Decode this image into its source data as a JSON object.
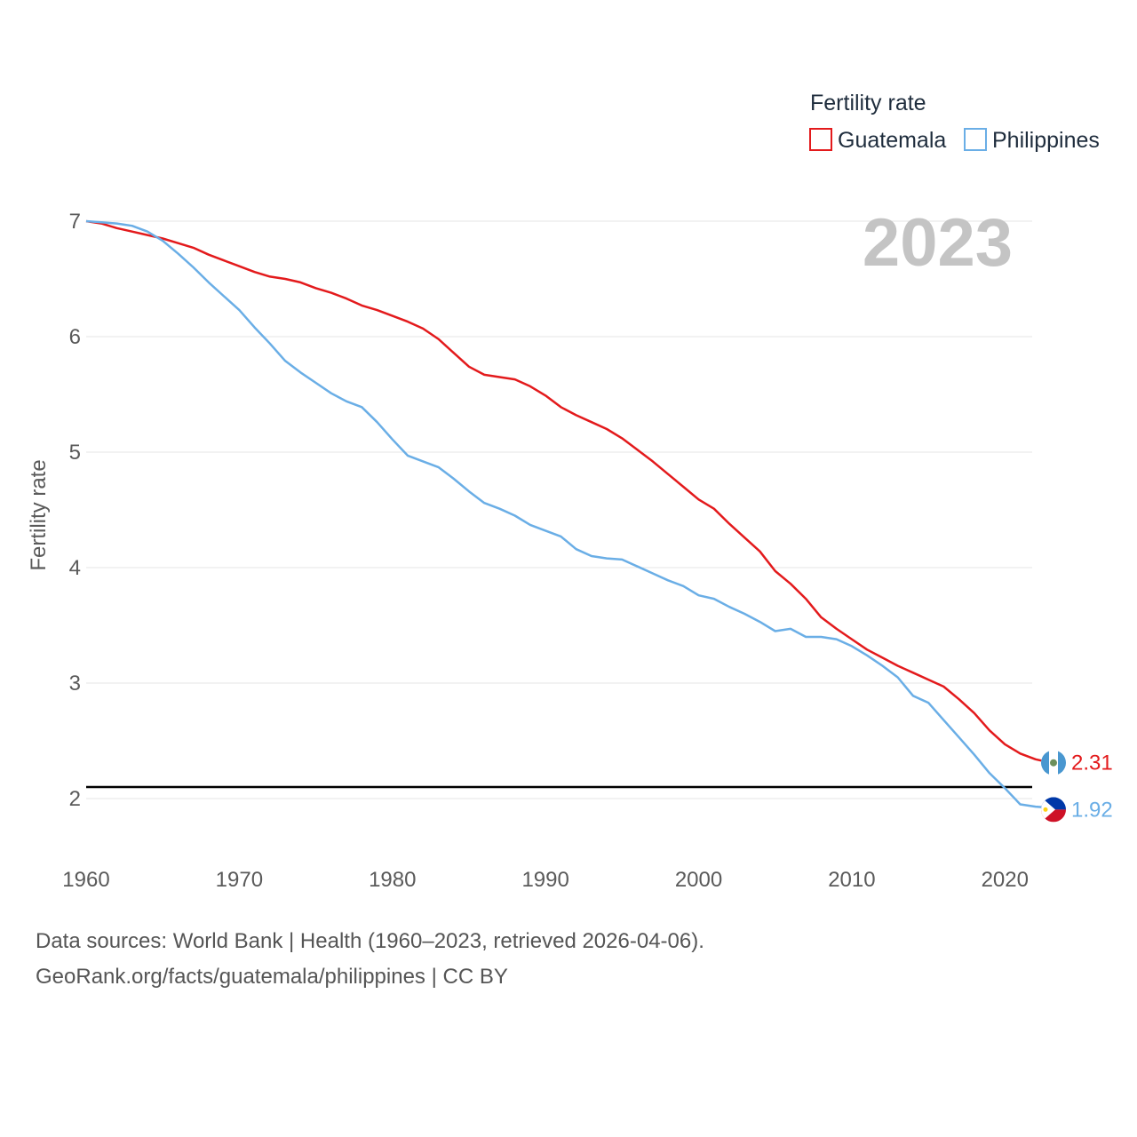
{
  "chart_data": {
    "type": "line",
    "title": "",
    "ylabel": "Fertility rate",
    "xlabel": "",
    "legend_title": "Fertility rate",
    "legend_position": "top-right",
    "current_year_label": "2023",
    "xlim": [
      1960,
      2023
    ],
    "ylim": [
      1.5,
      7.0
    ],
    "x_ticks": [
      1960,
      1970,
      1980,
      1990,
      2000,
      2010,
      2020
    ],
    "y_ticks": [
      2,
      3,
      4,
      5,
      6,
      7
    ],
    "reference_line": 2.1,
    "x": [
      1960,
      1961,
      1962,
      1963,
      1964,
      1965,
      1966,
      1967,
      1968,
      1969,
      1970,
      1971,
      1972,
      1973,
      1974,
      1975,
      1976,
      1977,
      1978,
      1979,
      1980,
      1981,
      1982,
      1983,
      1984,
      1985,
      1986,
      1987,
      1988,
      1989,
      1990,
      1991,
      1992,
      1993,
      1994,
      1995,
      1996,
      1997,
      1998,
      1999,
      2000,
      2001,
      2002,
      2003,
      2004,
      2005,
      2006,
      2007,
      2008,
      2009,
      2010,
      2011,
      2012,
      2013,
      2014,
      2015,
      2016,
      2017,
      2018,
      2019,
      2020,
      2021,
      2022,
      2023
    ],
    "series": [
      {
        "name": "Guatemala",
        "color": "#e31a1c",
        "end_label": "2.31",
        "flag_icon": "guatemala-flag-icon",
        "values": [
          7.0,
          6.98,
          6.94,
          6.91,
          6.88,
          6.85,
          6.81,
          6.77,
          6.71,
          6.66,
          6.61,
          6.56,
          6.52,
          6.5,
          6.47,
          6.42,
          6.38,
          6.33,
          6.27,
          6.23,
          6.18,
          6.13,
          6.07,
          5.98,
          5.86,
          5.74,
          5.67,
          5.65,
          5.63,
          5.57,
          5.49,
          5.39,
          5.32,
          5.26,
          5.2,
          5.12,
          5.02,
          4.92,
          4.81,
          4.7,
          4.59,
          4.51,
          4.38,
          4.26,
          4.14,
          3.97,
          3.86,
          3.73,
          3.57,
          3.47,
          3.38,
          3.29,
          3.22,
          3.15,
          3.09,
          3.03,
          2.97,
          2.86,
          2.74,
          2.59,
          2.47,
          2.39,
          2.34,
          2.31
        ]
      },
      {
        "name": "Philippines",
        "color": "#6aaee6",
        "end_label": "1.92",
        "flag_icon": "philippines-flag-icon",
        "values": [
          7.0,
          6.99,
          6.98,
          6.96,
          6.91,
          6.83,
          6.72,
          6.6,
          6.47,
          6.35,
          6.23,
          6.08,
          5.94,
          5.79,
          5.69,
          5.6,
          5.51,
          5.44,
          5.39,
          5.26,
          5.11,
          4.97,
          4.92,
          4.87,
          4.77,
          4.66,
          4.56,
          4.51,
          4.45,
          4.37,
          4.32,
          4.27,
          4.16,
          4.1,
          4.08,
          4.07,
          4.01,
          3.95,
          3.89,
          3.84,
          3.76,
          3.73,
          3.66,
          3.6,
          3.53,
          3.45,
          3.47,
          3.4,
          3.4,
          3.38,
          3.32,
          3.24,
          3.15,
          3.05,
          2.89,
          2.83,
          2.68,
          2.53,
          2.38,
          2.22,
          2.09,
          1.95,
          1.93,
          1.92
        ]
      }
    ]
  },
  "footer": {
    "source_line1": "Data sources: World Bank | Health (1960–2023, retrieved 2026-04-06).",
    "source_line2": "GeoRank.org/facts/guatemala/philippines | CC BY"
  }
}
